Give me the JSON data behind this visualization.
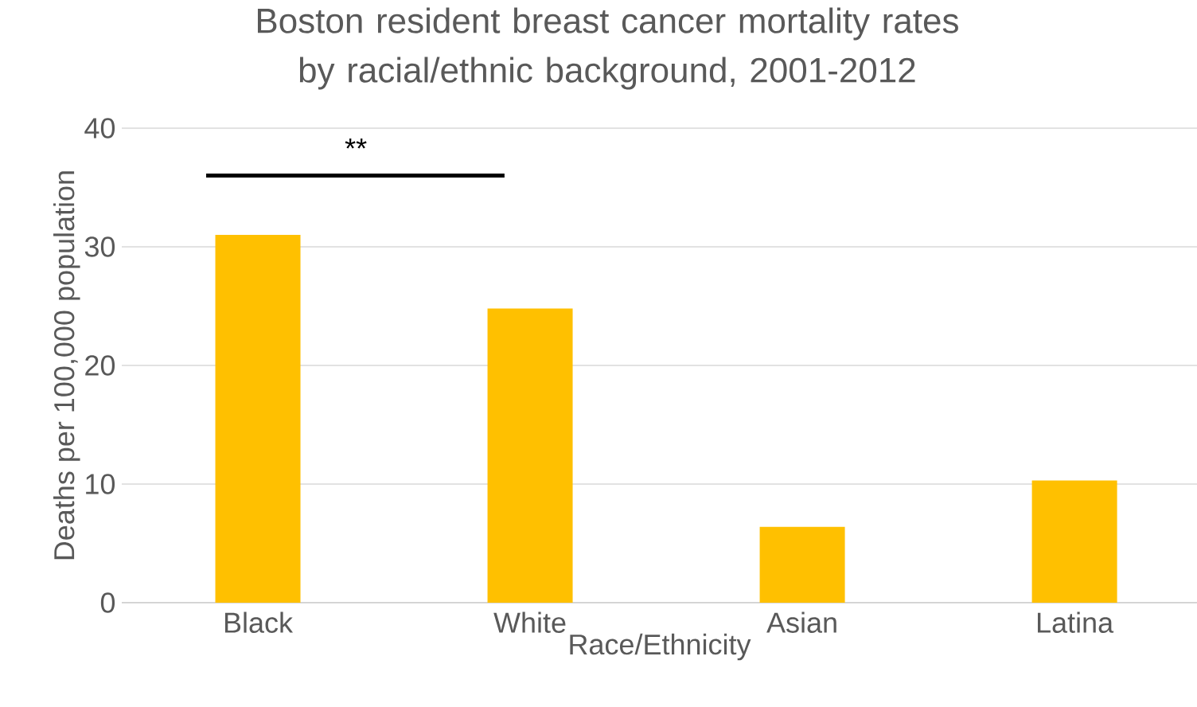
{
  "chart_data": {
    "type": "bar",
    "title": "Boston resident breast cancer mortality rates by racial/ethnic background, 2001-2012",
    "xlabel": "Race/Ethnicity",
    "ylabel": "Deaths per 100,000 population",
    "categories": [
      "Black",
      "White",
      "Asian",
      "Latina"
    ],
    "values": [
      31.0,
      24.8,
      6.4,
      10.3
    ],
    "color": "#ffc000",
    "ylim": [
      0,
      40
    ],
    "yticks": [
      0,
      10,
      20,
      30,
      40
    ],
    "grid": "y",
    "legend": false,
    "annotations": [
      "**"
    ]
  }
}
